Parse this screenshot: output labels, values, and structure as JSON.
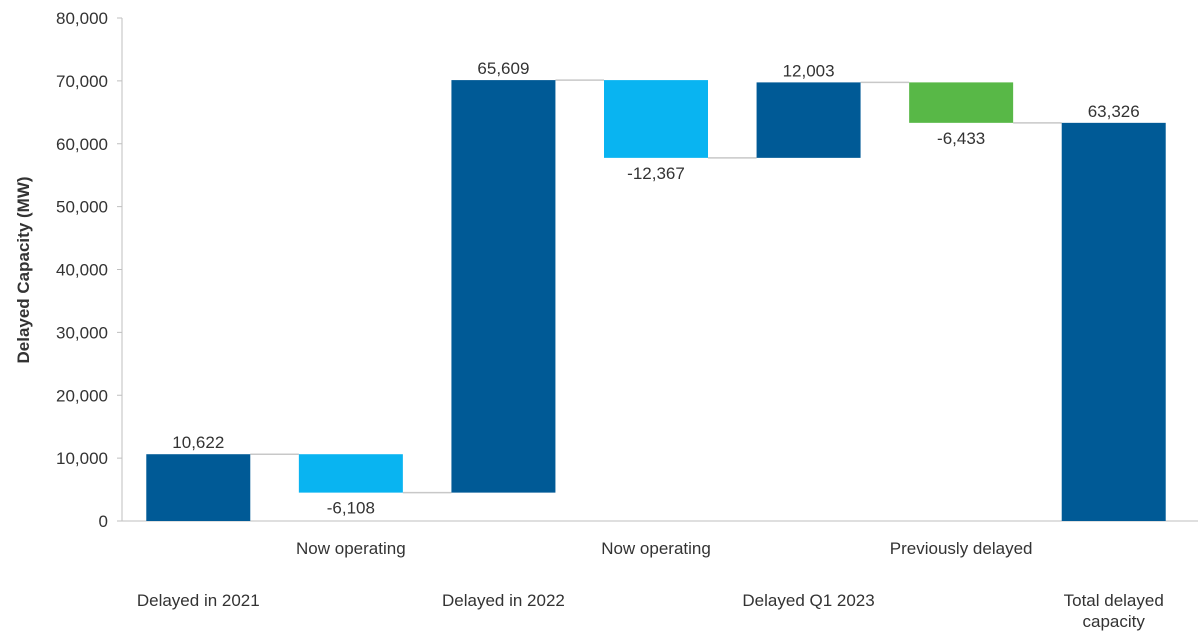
{
  "chart_data": {
    "type": "bar",
    "subtype": "waterfall",
    "title": "",
    "xlabel": "",
    "ylabel": "Delayed Capacity (MW)",
    "ylim": [
      0,
      80000
    ],
    "yticks": [
      0,
      10000,
      20000,
      30000,
      40000,
      50000,
      60000,
      70000,
      80000
    ],
    "ytick_labels": [
      "0",
      "10,000",
      "20,000",
      "30,000",
      "40,000",
      "50,000",
      "60,000",
      "70,000",
      "80,000"
    ],
    "grid": false,
    "legend": "none",
    "categories": [
      [
        "Delayed in 2021"
      ],
      [
        "Now operating"
      ],
      [
        "Delayed in 2022"
      ],
      [
        "Now operating"
      ],
      [
        "Delayed Q1 2023"
      ],
      [
        "Previously delayed"
      ],
      [
        "Total delayed",
        "capacity"
      ]
    ],
    "bars": [
      {
        "start": 0,
        "end": 10622,
        "label": "10,622",
        "kind": "increase",
        "color": "#005a96"
      },
      {
        "start": 10622,
        "end": 4514,
        "label": "-6,108",
        "kind": "decrease",
        "color": "#09b4f1"
      },
      {
        "start": 4514,
        "end": 70123,
        "label": "65,609",
        "kind": "increase",
        "color": "#005a96"
      },
      {
        "start": 70123,
        "end": 57756,
        "label": "-12,367",
        "kind": "decrease",
        "color": "#09b4f1"
      },
      {
        "start": 57756,
        "end": 69759,
        "label": "12,003",
        "kind": "increase",
        "color": "#005a96"
      },
      {
        "start": 69759,
        "end": 63326,
        "label": "-6,433",
        "kind": "decrease",
        "color": "#58b847"
      },
      {
        "start": 0,
        "end": 63326,
        "label": "63,326",
        "kind": "total",
        "color": "#005a96"
      }
    ],
    "connector_color": "#c8c8c8",
    "axis_color": "#bfbfbf"
  }
}
